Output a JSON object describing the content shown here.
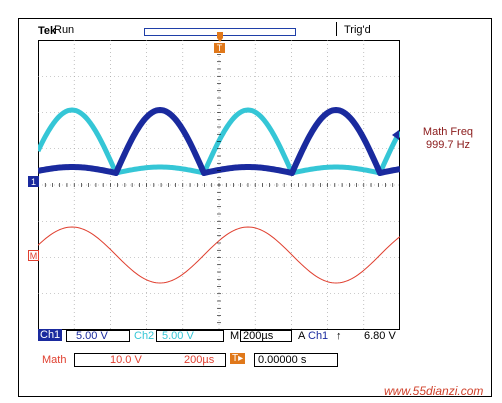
{
  "header": {
    "brand": "Tek",
    "state": "Run",
    "trigger_status": "Trig'd",
    "trigger_marker": "T"
  },
  "readout": {
    "math_freq_label": "Math Freq",
    "math_freq_value": "999.7 Hz"
  },
  "channels": {
    "ch1": {
      "label": "Ch1",
      "scale": "5.00 V",
      "color": "#1a2a9e",
      "marker": "1"
    },
    "ch2": {
      "label": "Ch2",
      "scale": "5.00 V",
      "color": "#35c6d6"
    },
    "math": {
      "label": "Math",
      "marker": "M",
      "scale": "10.0 V",
      "time": "200µs",
      "color": "#e04030"
    }
  },
  "timebase": {
    "label": "M",
    "value": "200µs"
  },
  "trigger": {
    "label": "A",
    "source": "Ch1",
    "slope": "↑",
    "level": "6.80 V",
    "position": "0.00000 s",
    "marker": "T▸"
  },
  "watermark": "www.55dianzi.com"
}
